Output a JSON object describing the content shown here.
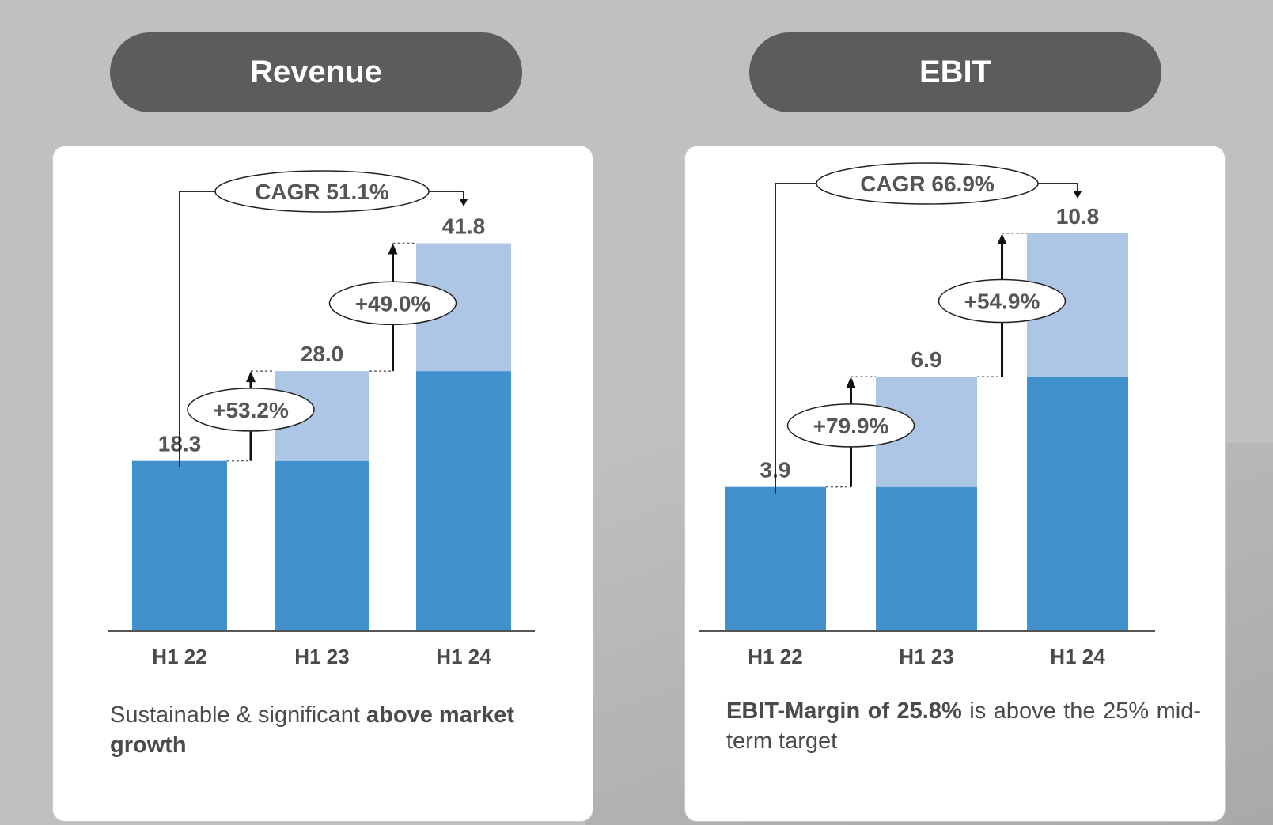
{
  "chart_data": [
    {
      "type": "bar",
      "title": "Revenue",
      "categories": [
        "H1 22",
        "H1 23",
        "H1 24"
      ],
      "values": [
        18.3,
        28.0,
        41.8
      ],
      "value_labels": [
        "18.3",
        "28.0",
        "41.8"
      ],
      "growth_labels": [
        "+53.2%",
        "+49.0%"
      ],
      "cagr_label": "CAGR 51.1%",
      "ylim": [
        0,
        45
      ],
      "colors": {
        "base": "#4191cc",
        "increment": "#aec6e6"
      },
      "caption": {
        "text": "Sustainable & significant ",
        "bold": "above market growth"
      }
    },
    {
      "type": "bar",
      "title": "EBIT",
      "categories": [
        "H1 22",
        "H1 23",
        "H1 24"
      ],
      "values": [
        3.9,
        6.9,
        10.8
      ],
      "value_labels": [
        "3.9",
        "6.9",
        "10.8"
      ],
      "growth_labels": [
        "+79.9%",
        "+54.9%"
      ],
      "cagr_label": "CAGR 66.9%",
      "ylim": [
        0,
        11.7
      ],
      "colors": {
        "base": "#4191cc",
        "increment": "#aec6e6"
      },
      "caption": {
        "bold": "EBIT-Margin of 25.8%",
        "text": " is above the 25% mid-term target"
      }
    }
  ]
}
